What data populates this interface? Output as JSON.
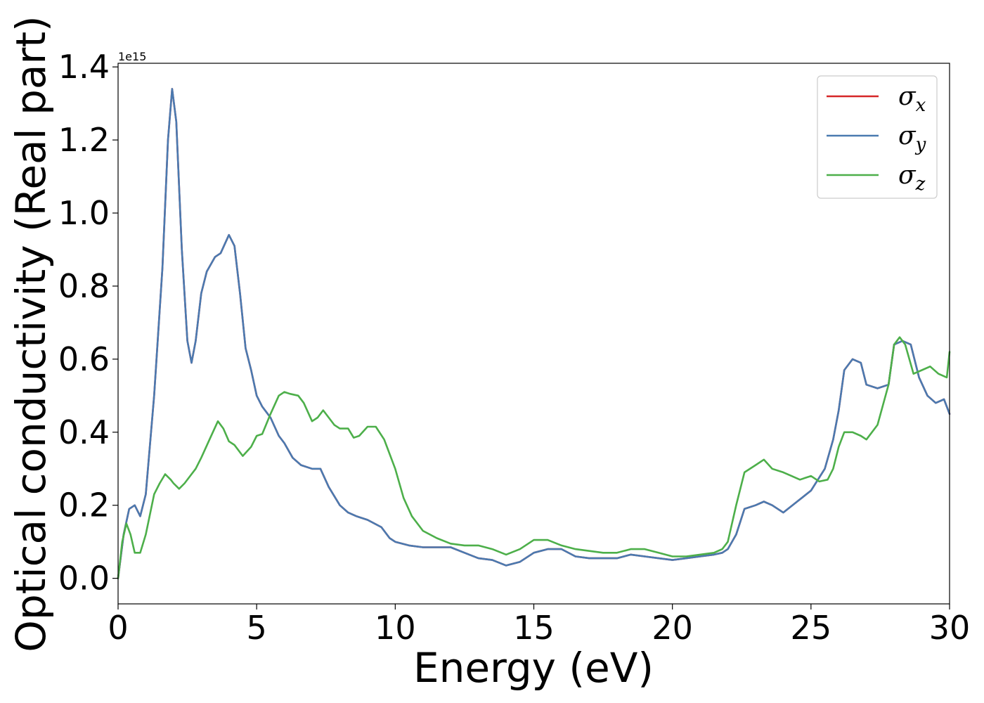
{
  "chart_data": {
    "type": "line",
    "xlabel": "Energy (eV)",
    "ylabel": "Optical conductivity (Real part)",
    "offset_text": "1e15",
    "xlim": [
      0,
      30
    ],
    "ylim": [
      -0.07,
      1.41
    ],
    "x_ticks": [
      0,
      5,
      10,
      15,
      20,
      25,
      30
    ],
    "y_ticks": [
      0.0,
      0.2,
      0.4,
      0.6,
      0.8,
      1.0,
      1.2,
      1.4
    ],
    "y_tick_labels": [
      "0.0",
      "0.2",
      "0.4",
      "0.6",
      "0.8",
      "1.0",
      "1.2",
      "1.4"
    ],
    "grid": false,
    "legend_position": "top-right",
    "series": [
      {
        "name": "σx",
        "base": "σ",
        "sub": "x",
        "color": "#d62728",
        "x": [
          0,
          0.2,
          0.4,
          0.6,
          0.8,
          1.0,
          1.3,
          1.6,
          1.8,
          1.95,
          2.1,
          2.3,
          2.5,
          2.65,
          2.8,
          3.0,
          3.2,
          3.5,
          3.7,
          4.0,
          4.2,
          4.4,
          4.6,
          4.8,
          5.0,
          5.2,
          5.5,
          5.8,
          6.0,
          6.3,
          6.6,
          7.0,
          7.3,
          7.6,
          8.0,
          8.3,
          8.6,
          9.0,
          9.5,
          9.8,
          10.0,
          10.5,
          11.0,
          11.5,
          12.0,
          12.5,
          13.0,
          13.5,
          14.0,
          14.5,
          15.0,
          15.5,
          16.0,
          16.5,
          17.0,
          17.5,
          18.0,
          18.5,
          19.0,
          19.5,
          20.0,
          20.5,
          21.0,
          21.5,
          21.8,
          22.0,
          22.3,
          22.6,
          23.0,
          23.3,
          23.6,
          24.0,
          24.5,
          25.0,
          25.5,
          25.8,
          26.0,
          26.2,
          26.5,
          26.8,
          27.0,
          27.4,
          27.8,
          28.0,
          28.3,
          28.6,
          28.9,
          29.2,
          29.5,
          29.8,
          30.0
        ],
        "y": [
          0.0,
          0.12,
          0.19,
          0.2,
          0.17,
          0.23,
          0.5,
          0.85,
          1.2,
          1.34,
          1.25,
          0.9,
          0.65,
          0.59,
          0.65,
          0.78,
          0.84,
          0.88,
          0.89,
          0.94,
          0.91,
          0.78,
          0.63,
          0.57,
          0.5,
          0.47,
          0.44,
          0.39,
          0.37,
          0.33,
          0.31,
          0.3,
          0.3,
          0.25,
          0.2,
          0.18,
          0.17,
          0.16,
          0.14,
          0.11,
          0.1,
          0.09,
          0.085,
          0.085,
          0.085,
          0.07,
          0.055,
          0.05,
          0.035,
          0.045,
          0.07,
          0.08,
          0.08,
          0.06,
          0.055,
          0.055,
          0.055,
          0.065,
          0.06,
          0.055,
          0.05,
          0.055,
          0.06,
          0.065,
          0.07,
          0.08,
          0.12,
          0.19,
          0.2,
          0.21,
          0.2,
          0.18,
          0.21,
          0.24,
          0.3,
          0.38,
          0.46,
          0.57,
          0.6,
          0.59,
          0.53,
          0.52,
          0.53,
          0.64,
          0.65,
          0.64,
          0.55,
          0.5,
          0.48,
          0.49,
          0.45
        ]
      },
      {
        "name": "σy",
        "base": "σ",
        "sub": "y",
        "color": "#4a7ab0",
        "x": [
          0,
          0.2,
          0.4,
          0.6,
          0.8,
          1.0,
          1.3,
          1.6,
          1.8,
          1.95,
          2.1,
          2.3,
          2.5,
          2.65,
          2.8,
          3.0,
          3.2,
          3.5,
          3.7,
          4.0,
          4.2,
          4.4,
          4.6,
          4.8,
          5.0,
          5.2,
          5.5,
          5.8,
          6.0,
          6.3,
          6.6,
          7.0,
          7.3,
          7.6,
          8.0,
          8.3,
          8.6,
          9.0,
          9.5,
          9.8,
          10.0,
          10.5,
          11.0,
          11.5,
          12.0,
          12.5,
          13.0,
          13.5,
          14.0,
          14.5,
          15.0,
          15.5,
          16.0,
          16.5,
          17.0,
          17.5,
          18.0,
          18.5,
          19.0,
          19.5,
          20.0,
          20.5,
          21.0,
          21.5,
          21.8,
          22.0,
          22.3,
          22.6,
          23.0,
          23.3,
          23.6,
          24.0,
          24.5,
          25.0,
          25.5,
          25.8,
          26.0,
          26.2,
          26.5,
          26.8,
          27.0,
          27.4,
          27.8,
          28.0,
          28.3,
          28.6,
          28.9,
          29.2,
          29.5,
          29.8,
          30.0
        ],
        "y": [
          0.0,
          0.12,
          0.19,
          0.2,
          0.17,
          0.23,
          0.5,
          0.85,
          1.2,
          1.34,
          1.25,
          0.9,
          0.65,
          0.59,
          0.65,
          0.78,
          0.84,
          0.88,
          0.89,
          0.94,
          0.91,
          0.78,
          0.63,
          0.57,
          0.5,
          0.47,
          0.44,
          0.39,
          0.37,
          0.33,
          0.31,
          0.3,
          0.3,
          0.25,
          0.2,
          0.18,
          0.17,
          0.16,
          0.14,
          0.11,
          0.1,
          0.09,
          0.085,
          0.085,
          0.085,
          0.07,
          0.055,
          0.05,
          0.035,
          0.045,
          0.07,
          0.08,
          0.08,
          0.06,
          0.055,
          0.055,
          0.055,
          0.065,
          0.06,
          0.055,
          0.05,
          0.055,
          0.06,
          0.065,
          0.07,
          0.08,
          0.12,
          0.19,
          0.2,
          0.21,
          0.2,
          0.18,
          0.21,
          0.24,
          0.3,
          0.38,
          0.46,
          0.57,
          0.6,
          0.59,
          0.53,
          0.52,
          0.53,
          0.64,
          0.65,
          0.64,
          0.55,
          0.5,
          0.48,
          0.49,
          0.45
        ]
      },
      {
        "name": "σz",
        "base": "σ",
        "sub": "z",
        "color": "#4daf4a",
        "x": [
          0,
          0.15,
          0.3,
          0.45,
          0.6,
          0.8,
          1.0,
          1.3,
          1.5,
          1.7,
          1.9,
          2.0,
          2.2,
          2.4,
          2.6,
          2.8,
          3.0,
          3.3,
          3.6,
          3.8,
          4.0,
          4.2,
          4.5,
          4.8,
          5.0,
          5.2,
          5.5,
          5.8,
          6.0,
          6.2,
          6.5,
          6.7,
          7.0,
          7.2,
          7.4,
          7.6,
          7.8,
          8.0,
          8.3,
          8.5,
          8.7,
          9.0,
          9.3,
          9.6,
          10.0,
          10.3,
          10.6,
          11.0,
          11.5,
          12.0,
          12.5,
          13.0,
          13.5,
          14.0,
          14.5,
          15.0,
          15.5,
          16.0,
          16.5,
          17.0,
          17.5,
          18.0,
          18.5,
          19.0,
          19.5,
          20.0,
          20.5,
          21.0,
          21.5,
          21.8,
          22.0,
          22.3,
          22.6,
          23.0,
          23.3,
          23.6,
          24.0,
          24.3,
          24.6,
          25.0,
          25.3,
          25.6,
          25.8,
          26.0,
          26.2,
          26.5,
          26.8,
          27.0,
          27.4,
          27.8,
          28.0,
          28.2,
          28.4,
          28.7,
          29.0,
          29.3,
          29.6,
          29.9,
          30.0
        ],
        "y": [
          0.0,
          0.1,
          0.15,
          0.12,
          0.07,
          0.07,
          0.12,
          0.23,
          0.26,
          0.285,
          0.27,
          0.26,
          0.245,
          0.26,
          0.28,
          0.3,
          0.33,
          0.38,
          0.43,
          0.41,
          0.375,
          0.365,
          0.335,
          0.36,
          0.39,
          0.395,
          0.45,
          0.5,
          0.51,
          0.505,
          0.5,
          0.48,
          0.43,
          0.44,
          0.46,
          0.44,
          0.42,
          0.41,
          0.41,
          0.385,
          0.39,
          0.415,
          0.415,
          0.38,
          0.3,
          0.22,
          0.17,
          0.13,
          0.11,
          0.095,
          0.09,
          0.09,
          0.08,
          0.065,
          0.08,
          0.105,
          0.105,
          0.09,
          0.08,
          0.075,
          0.07,
          0.07,
          0.08,
          0.08,
          0.07,
          0.06,
          0.06,
          0.065,
          0.07,
          0.08,
          0.1,
          0.2,
          0.29,
          0.31,
          0.325,
          0.3,
          0.29,
          0.28,
          0.27,
          0.28,
          0.265,
          0.27,
          0.3,
          0.36,
          0.4,
          0.4,
          0.39,
          0.38,
          0.42,
          0.53,
          0.64,
          0.66,
          0.64,
          0.56,
          0.57,
          0.58,
          0.56,
          0.55,
          0.62
        ]
      }
    ]
  }
}
